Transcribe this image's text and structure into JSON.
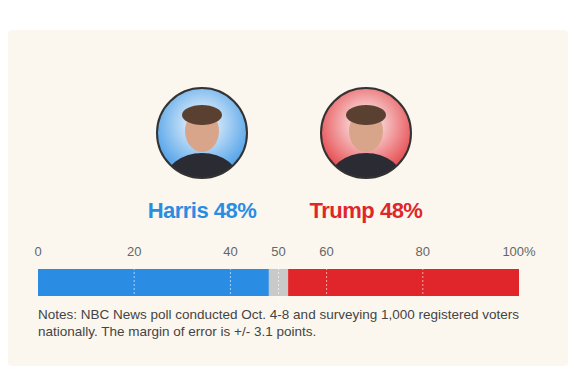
{
  "chart_data": {
    "type": "bar",
    "orientation": "horizontal",
    "stacked": true,
    "categories": [
      null
    ],
    "series": [
      {
        "name": "Harris",
        "color": "#2a8de3",
        "values": [
          48
        ],
        "value_labels": [
          "48%"
        ]
      },
      {
        "name": null,
        "color": "#c9c9c9",
        "values": [
          4
        ]
      },
      {
        "name": "Trump",
        "color": "#e0262b",
        "values": [
          48
        ],
        "value_labels": [
          "48%"
        ]
      }
    ],
    "xlim": [
      0,
      100
    ],
    "xticks": [
      0,
      20,
      40,
      50,
      60,
      80,
      {
        "value": 100,
        "label": "100%"
      }
    ],
    "grid": true,
    "tick_labels": "x",
    "note": "Notes: NBC News poll conducted Oct. 4-8 and surveying 1,000 registered voters nationally. The margin of error is +/- 3.1 points."
  }
}
